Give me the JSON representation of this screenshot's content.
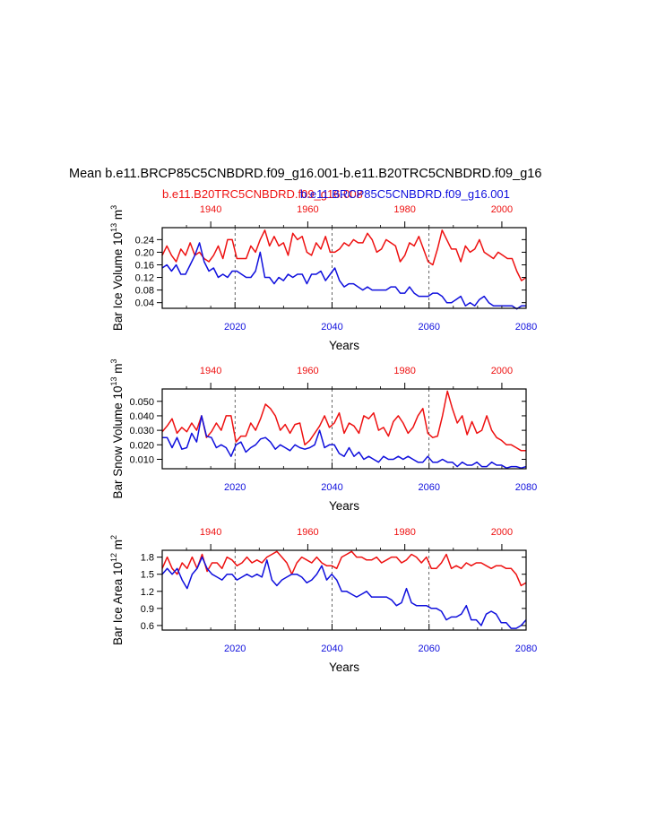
{
  "figure": {
    "title": "Mean b.e11.BRCP85C5CNBDRD.f09_g16.001-b.e11.B20TRC5CNBDRD.f09_g16",
    "legend_red": "b.e11.B20TRC5CNBDRD.f09_g16.008",
    "legend_blue": "b.e11.BRCP85C5CNBDRD.f09_g16.001",
    "colors": {
      "red": "#ee1111",
      "blue": "#1010dd"
    }
  },
  "chart_data": [
    {
      "type": "line",
      "ylabel": {
        "prefix": "Bar Ice Volume 10",
        "exp": "13",
        "unit": " m",
        "unit_exp": "3"
      },
      "xlabel": "Years",
      "bottom_axis": {
        "range": [
          2005,
          2080
        ],
        "ticks": [
          "2020",
          "2040",
          "2060",
          "2080"
        ]
      },
      "top_axis": {
        "range": [
          1930,
          2005
        ],
        "ticks": [
          "1940",
          "1960",
          "1980",
          "2000"
        ]
      },
      "ylim": [
        0.022,
        0.278
      ],
      "yticks": [
        "0.04",
        "0.08",
        "0.12",
        "0.16",
        "0.20",
        "0.24"
      ],
      "ytick_values": [
        0.04,
        0.08,
        0.12,
        0.16,
        0.2,
        0.24
      ],
      "series": [
        {
          "color": "red",
          "values": [
            0.19,
            0.22,
            0.19,
            0.17,
            0.21,
            0.19,
            0.23,
            0.19,
            0.2,
            0.18,
            0.17,
            0.19,
            0.22,
            0.18,
            0.24,
            0.24,
            0.18,
            0.18,
            0.18,
            0.22,
            0.2,
            0.24,
            0.27,
            0.22,
            0.25,
            0.22,
            0.23,
            0.19,
            0.26,
            0.24,
            0.25,
            0.2,
            0.19,
            0.23,
            0.21,
            0.25,
            0.2,
            0.2,
            0.21,
            0.23,
            0.22,
            0.24,
            0.23,
            0.23,
            0.26,
            0.24,
            0.2,
            0.21,
            0.24,
            0.23,
            0.22,
            0.17,
            0.19,
            0.23,
            0.22,
            0.25,
            0.21,
            0.17,
            0.16,
            0.21,
            0.27,
            0.24,
            0.21,
            0.21,
            0.17,
            0.22,
            0.2,
            0.21,
            0.24,
            0.2,
            0.19,
            0.18,
            0.2,
            0.19,
            0.18,
            0.18,
            0.14,
            0.11,
            0.12
          ]
        },
        {
          "color": "blue",
          "values": [
            0.15,
            0.16,
            0.14,
            0.16,
            0.13,
            0.13,
            0.16,
            0.19,
            0.23,
            0.17,
            0.14,
            0.15,
            0.12,
            0.13,
            0.12,
            0.14,
            0.14,
            0.13,
            0.12,
            0.12,
            0.14,
            0.2,
            0.12,
            0.12,
            0.1,
            0.12,
            0.11,
            0.13,
            0.12,
            0.13,
            0.13,
            0.1,
            0.13,
            0.13,
            0.14,
            0.11,
            0.13,
            0.15,
            0.11,
            0.09,
            0.1,
            0.1,
            0.09,
            0.08,
            0.09,
            0.08,
            0.08,
            0.08,
            0.08,
            0.09,
            0.09,
            0.07,
            0.07,
            0.09,
            0.07,
            0.06,
            0.06,
            0.06,
            0.07,
            0.07,
            0.06,
            0.04,
            0.04,
            0.05,
            0.06,
            0.03,
            0.04,
            0.03,
            0.05,
            0.06,
            0.04,
            0.03,
            0.03,
            0.03,
            0.03,
            0.03,
            0.02,
            0.03,
            0.03
          ]
        }
      ]
    },
    {
      "type": "line",
      "ylabel": {
        "prefix": "Bar Snow Volume 10",
        "exp": "13",
        "unit": " m",
        "unit_exp": "3"
      },
      "xlabel": "Years",
      "bottom_axis": {
        "range": [
          2005,
          2080
        ],
        "ticks": [
          "2020",
          "2040",
          "2060",
          "2080"
        ]
      },
      "top_axis": {
        "range": [
          1930,
          2005
        ],
        "ticks": [
          "1940",
          "1960",
          "1980",
          "2000"
        ]
      },
      "ylim": [
        0.0035,
        0.0585
      ],
      "yticks": [
        "0.010",
        "0.020",
        "0.030",
        "0.040",
        "0.050"
      ],
      "ytick_values": [
        0.01,
        0.02,
        0.03,
        0.04,
        0.05
      ],
      "series": [
        {
          "color": "red",
          "values": [
            0.029,
            0.033,
            0.038,
            0.028,
            0.032,
            0.029,
            0.035,
            0.03,
            0.04,
            0.025,
            0.029,
            0.035,
            0.03,
            0.04,
            0.04,
            0.022,
            0.026,
            0.026,
            0.035,
            0.03,
            0.038,
            0.048,
            0.045,
            0.04,
            0.03,
            0.034,
            0.028,
            0.034,
            0.035,
            0.02,
            0.023,
            0.028,
            0.033,
            0.04,
            0.032,
            0.035,
            0.042,
            0.028,
            0.035,
            0.033,
            0.028,
            0.04,
            0.038,
            0.042,
            0.03,
            0.032,
            0.026,
            0.036,
            0.04,
            0.035,
            0.028,
            0.032,
            0.04,
            0.045,
            0.028,
            0.025,
            0.026,
            0.04,
            0.057,
            0.045,
            0.035,
            0.04,
            0.027,
            0.036,
            0.028,
            0.03,
            0.04,
            0.03,
            0.025,
            0.023,
            0.02,
            0.02,
            0.018,
            0.016,
            0.016
          ]
        },
        {
          "color": "blue",
          "values": [
            0.025,
            0.025,
            0.018,
            0.025,
            0.017,
            0.018,
            0.028,
            0.022,
            0.04,
            0.026,
            0.025,
            0.018,
            0.02,
            0.018,
            0.012,
            0.02,
            0.022,
            0.015,
            0.018,
            0.02,
            0.024,
            0.025,
            0.022,
            0.017,
            0.02,
            0.018,
            0.016,
            0.02,
            0.018,
            0.017,
            0.018,
            0.02,
            0.03,
            0.018,
            0.02,
            0.02,
            0.014,
            0.012,
            0.018,
            0.012,
            0.015,
            0.01,
            0.012,
            0.01,
            0.008,
            0.012,
            0.01,
            0.01,
            0.012,
            0.01,
            0.012,
            0.01,
            0.008,
            0.008,
            0.012,
            0.008,
            0.008,
            0.01,
            0.008,
            0.008,
            0.005,
            0.008,
            0.006,
            0.006,
            0.008,
            0.005,
            0.005,
            0.008,
            0.006,
            0.006,
            0.004,
            0.005,
            0.005,
            0.004,
            0.005
          ]
        }
      ]
    },
    {
      "type": "line",
      "ylabel": {
        "prefix": "Bar Ice Area 10",
        "exp": "12",
        "unit": " m",
        "unit_exp": "2"
      },
      "xlabel": "Years",
      "bottom_axis": {
        "range": [
          2005,
          2080
        ],
        "ticks": [
          "2020",
          "2040",
          "2060",
          "2080"
        ]
      },
      "top_axis": {
        "range": [
          1930,
          2005
        ],
        "ticks": [
          "1940",
          "1960",
          "1980",
          "2000"
        ]
      },
      "ylim": [
        0.52,
        1.92
      ],
      "yticks": [
        "0.6",
        "0.9",
        "1.2",
        "1.5",
        "1.8"
      ],
      "ytick_values": [
        0.6,
        0.9,
        1.2,
        1.5,
        1.8
      ],
      "series": [
        {
          "color": "red",
          "values": [
            1.6,
            1.8,
            1.6,
            1.5,
            1.7,
            1.6,
            1.8,
            1.6,
            1.85,
            1.55,
            1.7,
            1.7,
            1.6,
            1.8,
            1.75,
            1.65,
            1.7,
            1.8,
            1.7,
            1.75,
            1.7,
            1.8,
            1.85,
            1.9,
            1.8,
            1.7,
            1.5,
            1.7,
            1.8,
            1.75,
            1.7,
            1.8,
            1.7,
            1.65,
            1.65,
            1.6,
            1.8,
            1.85,
            1.9,
            1.8,
            1.8,
            1.75,
            1.75,
            1.8,
            1.7,
            1.75,
            1.8,
            1.8,
            1.7,
            1.75,
            1.85,
            1.8,
            1.7,
            1.8,
            1.6,
            1.6,
            1.7,
            1.85,
            1.6,
            1.65,
            1.6,
            1.7,
            1.65,
            1.7,
            1.7,
            1.65,
            1.6,
            1.65,
            1.65,
            1.6,
            1.6,
            1.5,
            1.3,
            1.35
          ]
        },
        {
          "color": "blue",
          "values": [
            1.5,
            1.6,
            1.5,
            1.6,
            1.4,
            1.25,
            1.5,
            1.6,
            1.8,
            1.6,
            1.5,
            1.45,
            1.4,
            1.5,
            1.5,
            1.4,
            1.45,
            1.5,
            1.45,
            1.5,
            1.45,
            1.75,
            1.4,
            1.3,
            1.4,
            1.45,
            1.5,
            1.5,
            1.45,
            1.35,
            1.4,
            1.5,
            1.65,
            1.4,
            1.5,
            1.4,
            1.2,
            1.2,
            1.15,
            1.1,
            1.15,
            1.2,
            1.1,
            1.1,
            1.1,
            1.1,
            1.05,
            0.95,
            1.0,
            1.25,
            1.0,
            0.95,
            0.95,
            0.95,
            0.9,
            0.9,
            0.85,
            0.7,
            0.75,
            0.75,
            0.8,
            0.95,
            0.7,
            0.7,
            0.6,
            0.8,
            0.85,
            0.8,
            0.65,
            0.65,
            0.55,
            0.55,
            0.6,
            0.7
          ]
        }
      ]
    }
  ]
}
